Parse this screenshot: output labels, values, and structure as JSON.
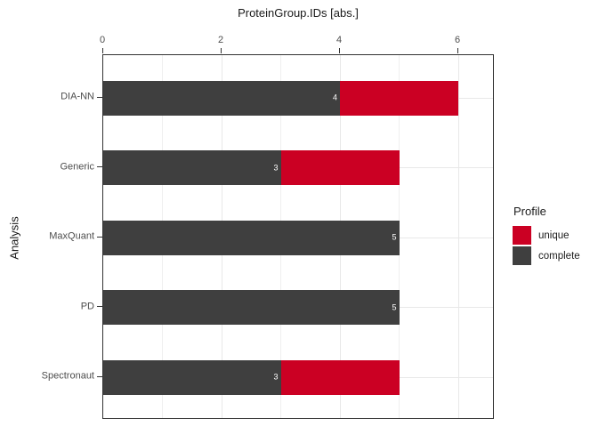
{
  "chart_data": {
    "type": "bar",
    "orientation": "horizontal",
    "stacked": true,
    "title": "ProteinGroup.IDs [abs.]",
    "x_axis": {
      "position": "top",
      "tick_values": [
        0,
        2,
        4,
        6
      ],
      "tick_labels": [
        "0",
        "2",
        "4",
        "6"
      ],
      "gridline_values": [
        1,
        2,
        3,
        4,
        5,
        6
      ],
      "range": [
        0,
        6.62
      ]
    },
    "y_axis": {
      "title": "Analysis",
      "categories": [
        "DIA-NN",
        "Generic",
        "MaxQuant",
        "PD",
        "Spectronaut"
      ]
    },
    "series": [
      {
        "name": "complete",
        "color": "#3f3f3f",
        "values": [
          4,
          3,
          5,
          5,
          3
        ],
        "value_labels": [
          "4",
          "3",
          "5",
          "5",
          "3"
        ],
        "label_color": "#ffffff"
      },
      {
        "name": "unique",
        "color": "#cb0023",
        "values": [
          2,
          2,
          0,
          0,
          2
        ]
      }
    ],
    "legend": {
      "title": "Profile",
      "position": "right",
      "entries": [
        {
          "label": "unique",
          "color": "#cb0023"
        },
        {
          "label": "complete",
          "color": "#3f3f3f"
        }
      ]
    }
  },
  "colors": {
    "major_grid": "#e8e8e8",
    "minor_grid": "#efefef",
    "panel_border": "#333333",
    "axis_text": "#4d4d4d",
    "tick_mark": "#333333"
  }
}
